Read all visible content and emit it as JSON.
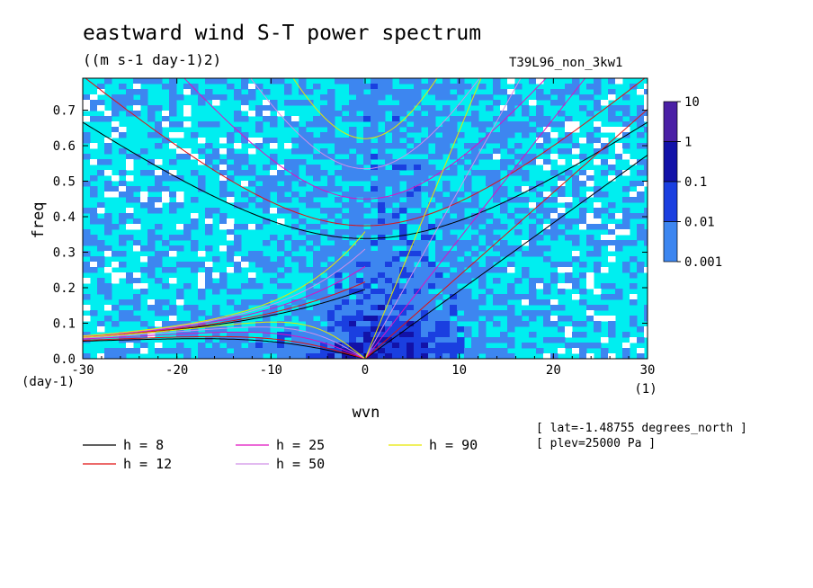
{
  "header": {
    "title": "eastward wind S-T power spectrum",
    "units": "((m s-1 day-1)2)",
    "experiment": "T39L96_non_3kw1"
  },
  "annotations": {
    "lat": "[ lat=-1.48755 degrees_north ]",
    "plev": "[ plev=25000 Pa ]"
  },
  "chart_data": {
    "type": "heatmap",
    "title": "eastward wind S-T power spectrum",
    "subtitle": "((m s-1 day-1)2)",
    "xlabel": "wvn",
    "ylabel": "freq",
    "x_unit_label": "(1)",
    "y_unit_label": "(day-1)",
    "xlim": [
      -30,
      30
    ],
    "ylim": [
      0,
      0.79
    ],
    "x_ticks": [
      -30,
      -20,
      -10,
      0,
      10,
      20,
      30
    ],
    "x_tick_labels": [
      "-30",
      "-20",
      "-10",
      "0",
      "10",
      "20",
      "30"
    ],
    "y_ticks": [
      0,
      0.1,
      0.2,
      0.3,
      0.4,
      0.5,
      0.6,
      0.7
    ],
    "y_tick_labels": [
      "0.0",
      "0.1",
      "0.2",
      "0.3",
      "0.4",
      "0.5",
      "0.6",
      "0.7"
    ],
    "colorbar": {
      "levels": [
        "10",
        "1",
        "0.1",
        "0.01",
        "0.001"
      ],
      "colors": [
        "#4a1fa5",
        "#1212a8",
        "#1a3fe0",
        "#3d86f0",
        "#00eef0"
      ]
    },
    "dispersion_curves": [
      {
        "name": "h =  8",
        "h": 8,
        "color": "#000000"
      },
      {
        "name": "h = 12",
        "h": 12,
        "color": "#e01010"
      },
      {
        "name": "h = 25",
        "h": 25,
        "color": "#e010c0"
      },
      {
        "name": "h = 50",
        "h": 50,
        "color": "#d090e8"
      },
      {
        "name": "h = 90",
        "h": 90,
        "color": "#e8e800"
      }
    ]
  }
}
